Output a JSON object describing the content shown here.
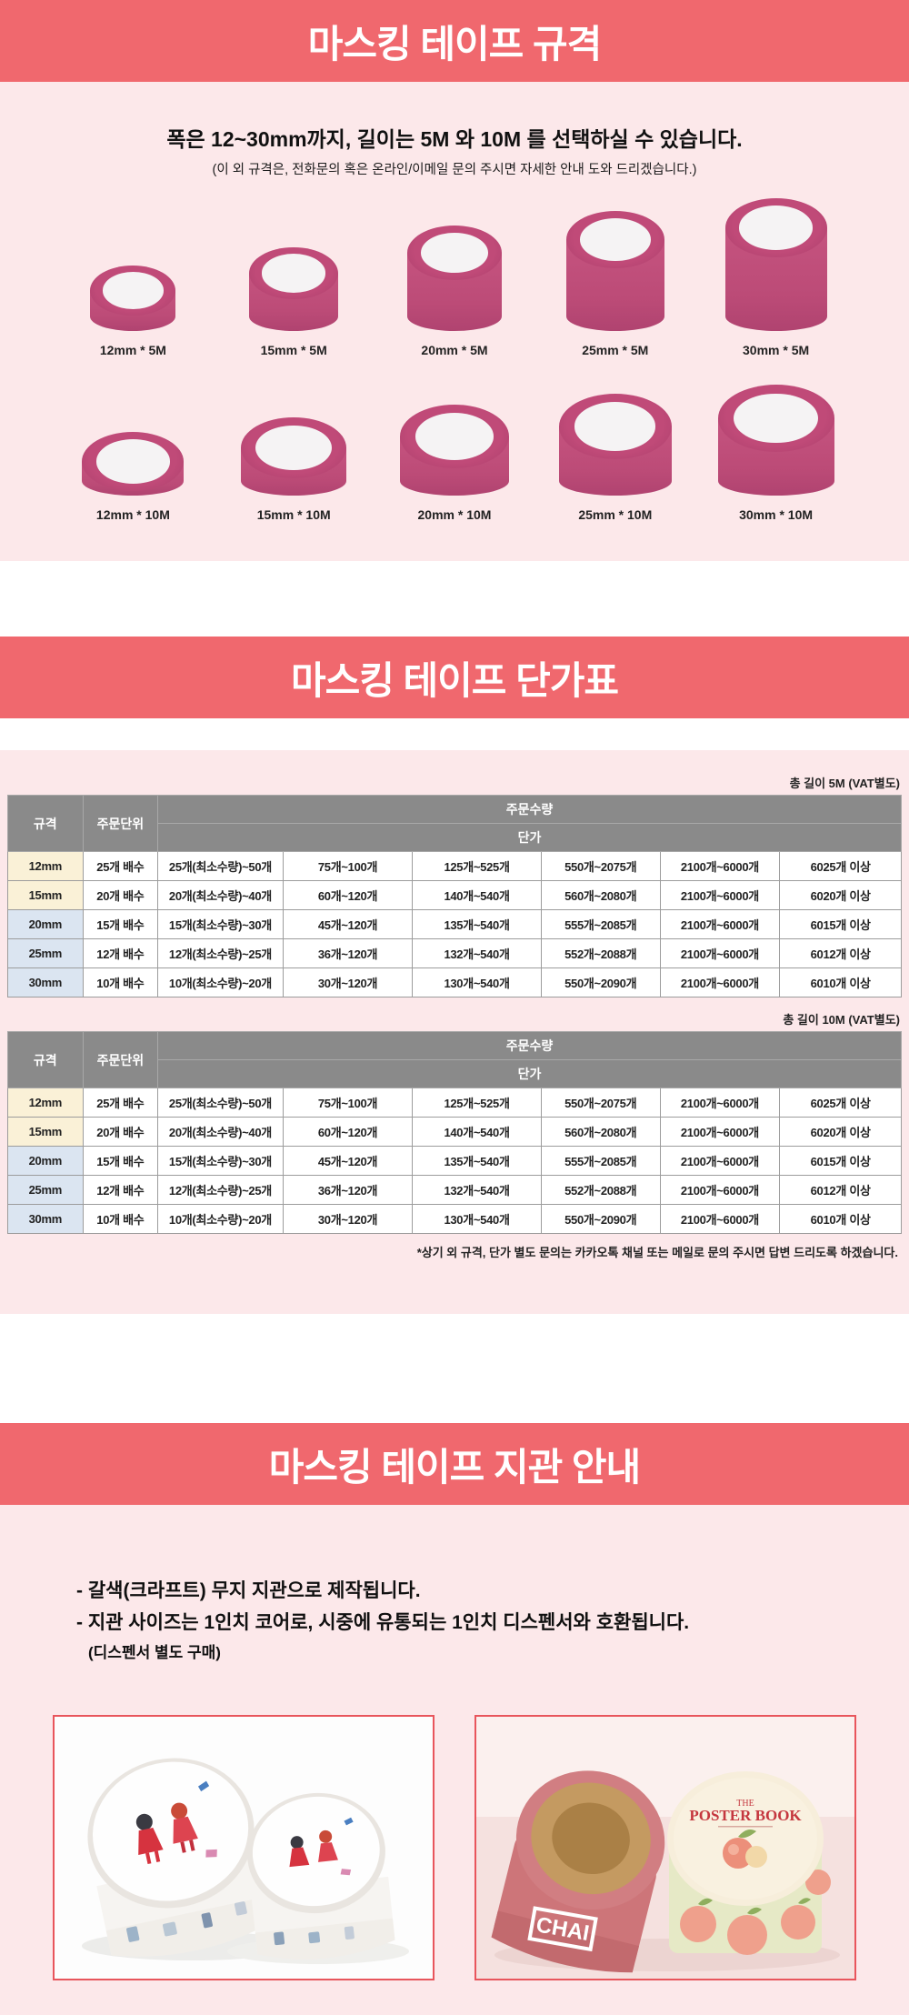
{
  "colors": {
    "header_bg": "#f0686e",
    "section_bg": "#fce8ea",
    "tape_pink": "#c5537f",
    "table_header_gray": "#8a8a8a",
    "row_cream": "#faf1d7",
    "row_blue": "#dbe5f1",
    "photo_border": "#e8555c"
  },
  "section_spec": {
    "title": "마스킹 테이프 규격",
    "headline": "폭은 12~30mm까지, 길이는 5M 와 10M 를 선택하실 수 있습니다.",
    "subline": "(이 외 규격은, 전화문의 혹은 온라인/이메일 문의 주시면 자세한 안내 도와 드리겠습니다.)",
    "rolls_5m": [
      "12mm * 5M",
      "15mm * 5M",
      "20mm * 5M",
      "25mm * 5M",
      "30mm * 5M"
    ],
    "rolls_10m": [
      "12mm * 10M",
      "15mm * 10M",
      "20mm * 10M",
      "25mm * 10M",
      "30mm * 10M"
    ]
  },
  "section_price": {
    "title": "마스킹 테이프 단가표",
    "col_size": "규격",
    "col_unit": "주문단위",
    "col_qty": "주문수량",
    "col_price": "단가",
    "footnote": "*상기 외 규격, 단가 별도 문의는 카카오톡 채널 또는 메일로 문의 주시면 답변 드리도록 하겠습니다.",
    "tables": [
      {
        "caption": "총 길이 5M (VAT별도)",
        "rows": [
          {
            "size": "12mm",
            "unit": "25개 배수",
            "tone": "cream",
            "prices": [
              "25개(최소수량)~50개",
              "75개~100개",
              "125개~525개",
              "550개~2075개",
              "2100개~6000개",
              "6025개 이상"
            ]
          },
          {
            "size": "15mm",
            "unit": "20개 배수",
            "tone": "cream",
            "prices": [
              "20개(최소수량)~40개",
              "60개~120개",
              "140개~540개",
              "560개~2080개",
              "2100개~6000개",
              "6020개 이상"
            ]
          },
          {
            "size": "20mm",
            "unit": "15개 배수",
            "tone": "blue",
            "prices": [
              "15개(최소수량)~30개",
              "45개~120개",
              "135개~540개",
              "555개~2085개",
              "2100개~6000개",
              "6015개 이상"
            ]
          },
          {
            "size": "25mm",
            "unit": "12개 배수",
            "tone": "blue",
            "prices": [
              "12개(최소수량)~25개",
              "36개~120개",
              "132개~540개",
              "552개~2088개",
              "2100개~6000개",
              "6012개 이상"
            ]
          },
          {
            "size": "30mm",
            "unit": "10개 배수",
            "tone": "blue",
            "prices": [
              "10개(최소수량)~20개",
              "30개~120개",
              "130개~540개",
              "550개~2090개",
              "2100개~6000개",
              "6010개 이상"
            ]
          }
        ]
      },
      {
        "caption": "총 길이 10M (VAT별도)",
        "rows": [
          {
            "size": "12mm",
            "unit": "25개 배수",
            "tone": "cream",
            "prices": [
              "25개(최소수량)~50개",
              "75개~100개",
              "125개~525개",
              "550개~2075개",
              "2100개~6000개",
              "6025개 이상"
            ]
          },
          {
            "size": "15mm",
            "unit": "20개 배수",
            "tone": "cream",
            "prices": [
              "20개(최소수량)~40개",
              "60개~120개",
              "140개~540개",
              "560개~2080개",
              "2100개~6000개",
              "6020개 이상"
            ]
          },
          {
            "size": "20mm",
            "unit": "15개 배수",
            "tone": "blue",
            "prices": [
              "15개(최소수량)~30개",
              "45개~120개",
              "135개~540개",
              "555개~2085개",
              "2100개~6000개",
              "6015개 이상"
            ]
          },
          {
            "size": "25mm",
            "unit": "12개 배수",
            "tone": "blue",
            "prices": [
              "12개(최소수량)~25개",
              "36개~120개",
              "132개~540개",
              "552개~2088개",
              "2100개~6000개",
              "6012개 이상"
            ]
          },
          {
            "size": "30mm",
            "unit": "10개 배수",
            "tone": "blue",
            "prices": [
              "10개(최소수량)~20개",
              "30개~120개",
              "130개~540개",
              "550개~2090개",
              "2100개~6000개",
              "6010개 이상"
            ]
          }
        ]
      }
    ]
  },
  "section_core": {
    "title": "마스킹 테이프 지관 안내",
    "bullets": [
      "- 갈색(크라프트) 무지 지관으로 제작됩니다.",
      "- 지관 사이즈는 1인치 코어로, 시중에 유통되는 1인치 디스펜서와 호환됩니다."
    ],
    "bullet_note": "(디스펜서 별도 구매)",
    "photo_right_texts": {
      "brand": "CHAI",
      "book_line1": "THE",
      "book_line2": "POSTER BOOK"
    }
  }
}
